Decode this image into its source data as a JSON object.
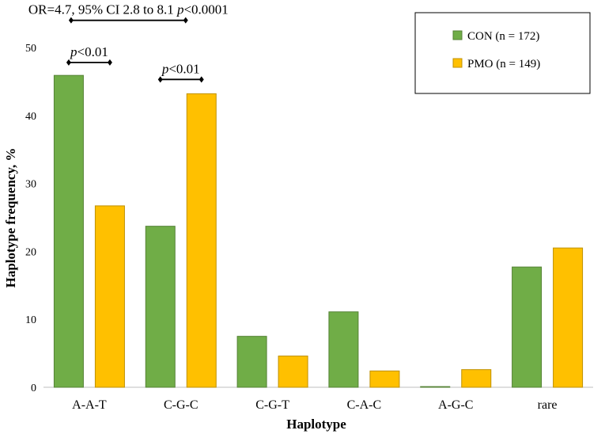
{
  "chart_data": {
    "type": "bar",
    "title": "",
    "xlabel": "Haplotype",
    "ylabel": "Haplotype frequency, %",
    "ylim": [
      0,
      50
    ],
    "yticks": [
      0,
      10,
      20,
      30,
      40,
      50
    ],
    "grid": false,
    "legend_position": "top-right",
    "categories": [
      "A-A-T",
      "C-G-C",
      "C-G-T",
      "C-A-C",
      "A-G-C",
      "rare"
    ],
    "series": [
      {
        "name": "CON (n = 172)",
        "color": "#70ad47",
        "edge": "#548235",
        "values": [
          45.9,
          23.7,
          7.5,
          11.1,
          0.1,
          17.7
        ]
      },
      {
        "name": "PMO (n = 149)",
        "color": "#ffc000",
        "edge": "#bf9000",
        "values": [
          26.7,
          43.2,
          4.6,
          2.4,
          2.6,
          20.5
        ]
      }
    ],
    "annotations": [
      {
        "id": "or-bracket",
        "from": "A-A-T",
        "to": "C-G-C",
        "level": 54,
        "prefix": "OR=4.7, 95% CI 2.8 to 8.1 ",
        "p": "p",
        "p_text": "<0.0001"
      },
      {
        "id": "aat-bracket",
        "category": "A-A-T",
        "level": 47.8,
        "prefix": "",
        "p": "p",
        "p_text": "<0.01"
      },
      {
        "id": "cgc-bracket",
        "category": "C-G-C",
        "level": 45.3,
        "prefix": "",
        "p": "p",
        "p_text": "<0.01"
      }
    ]
  }
}
